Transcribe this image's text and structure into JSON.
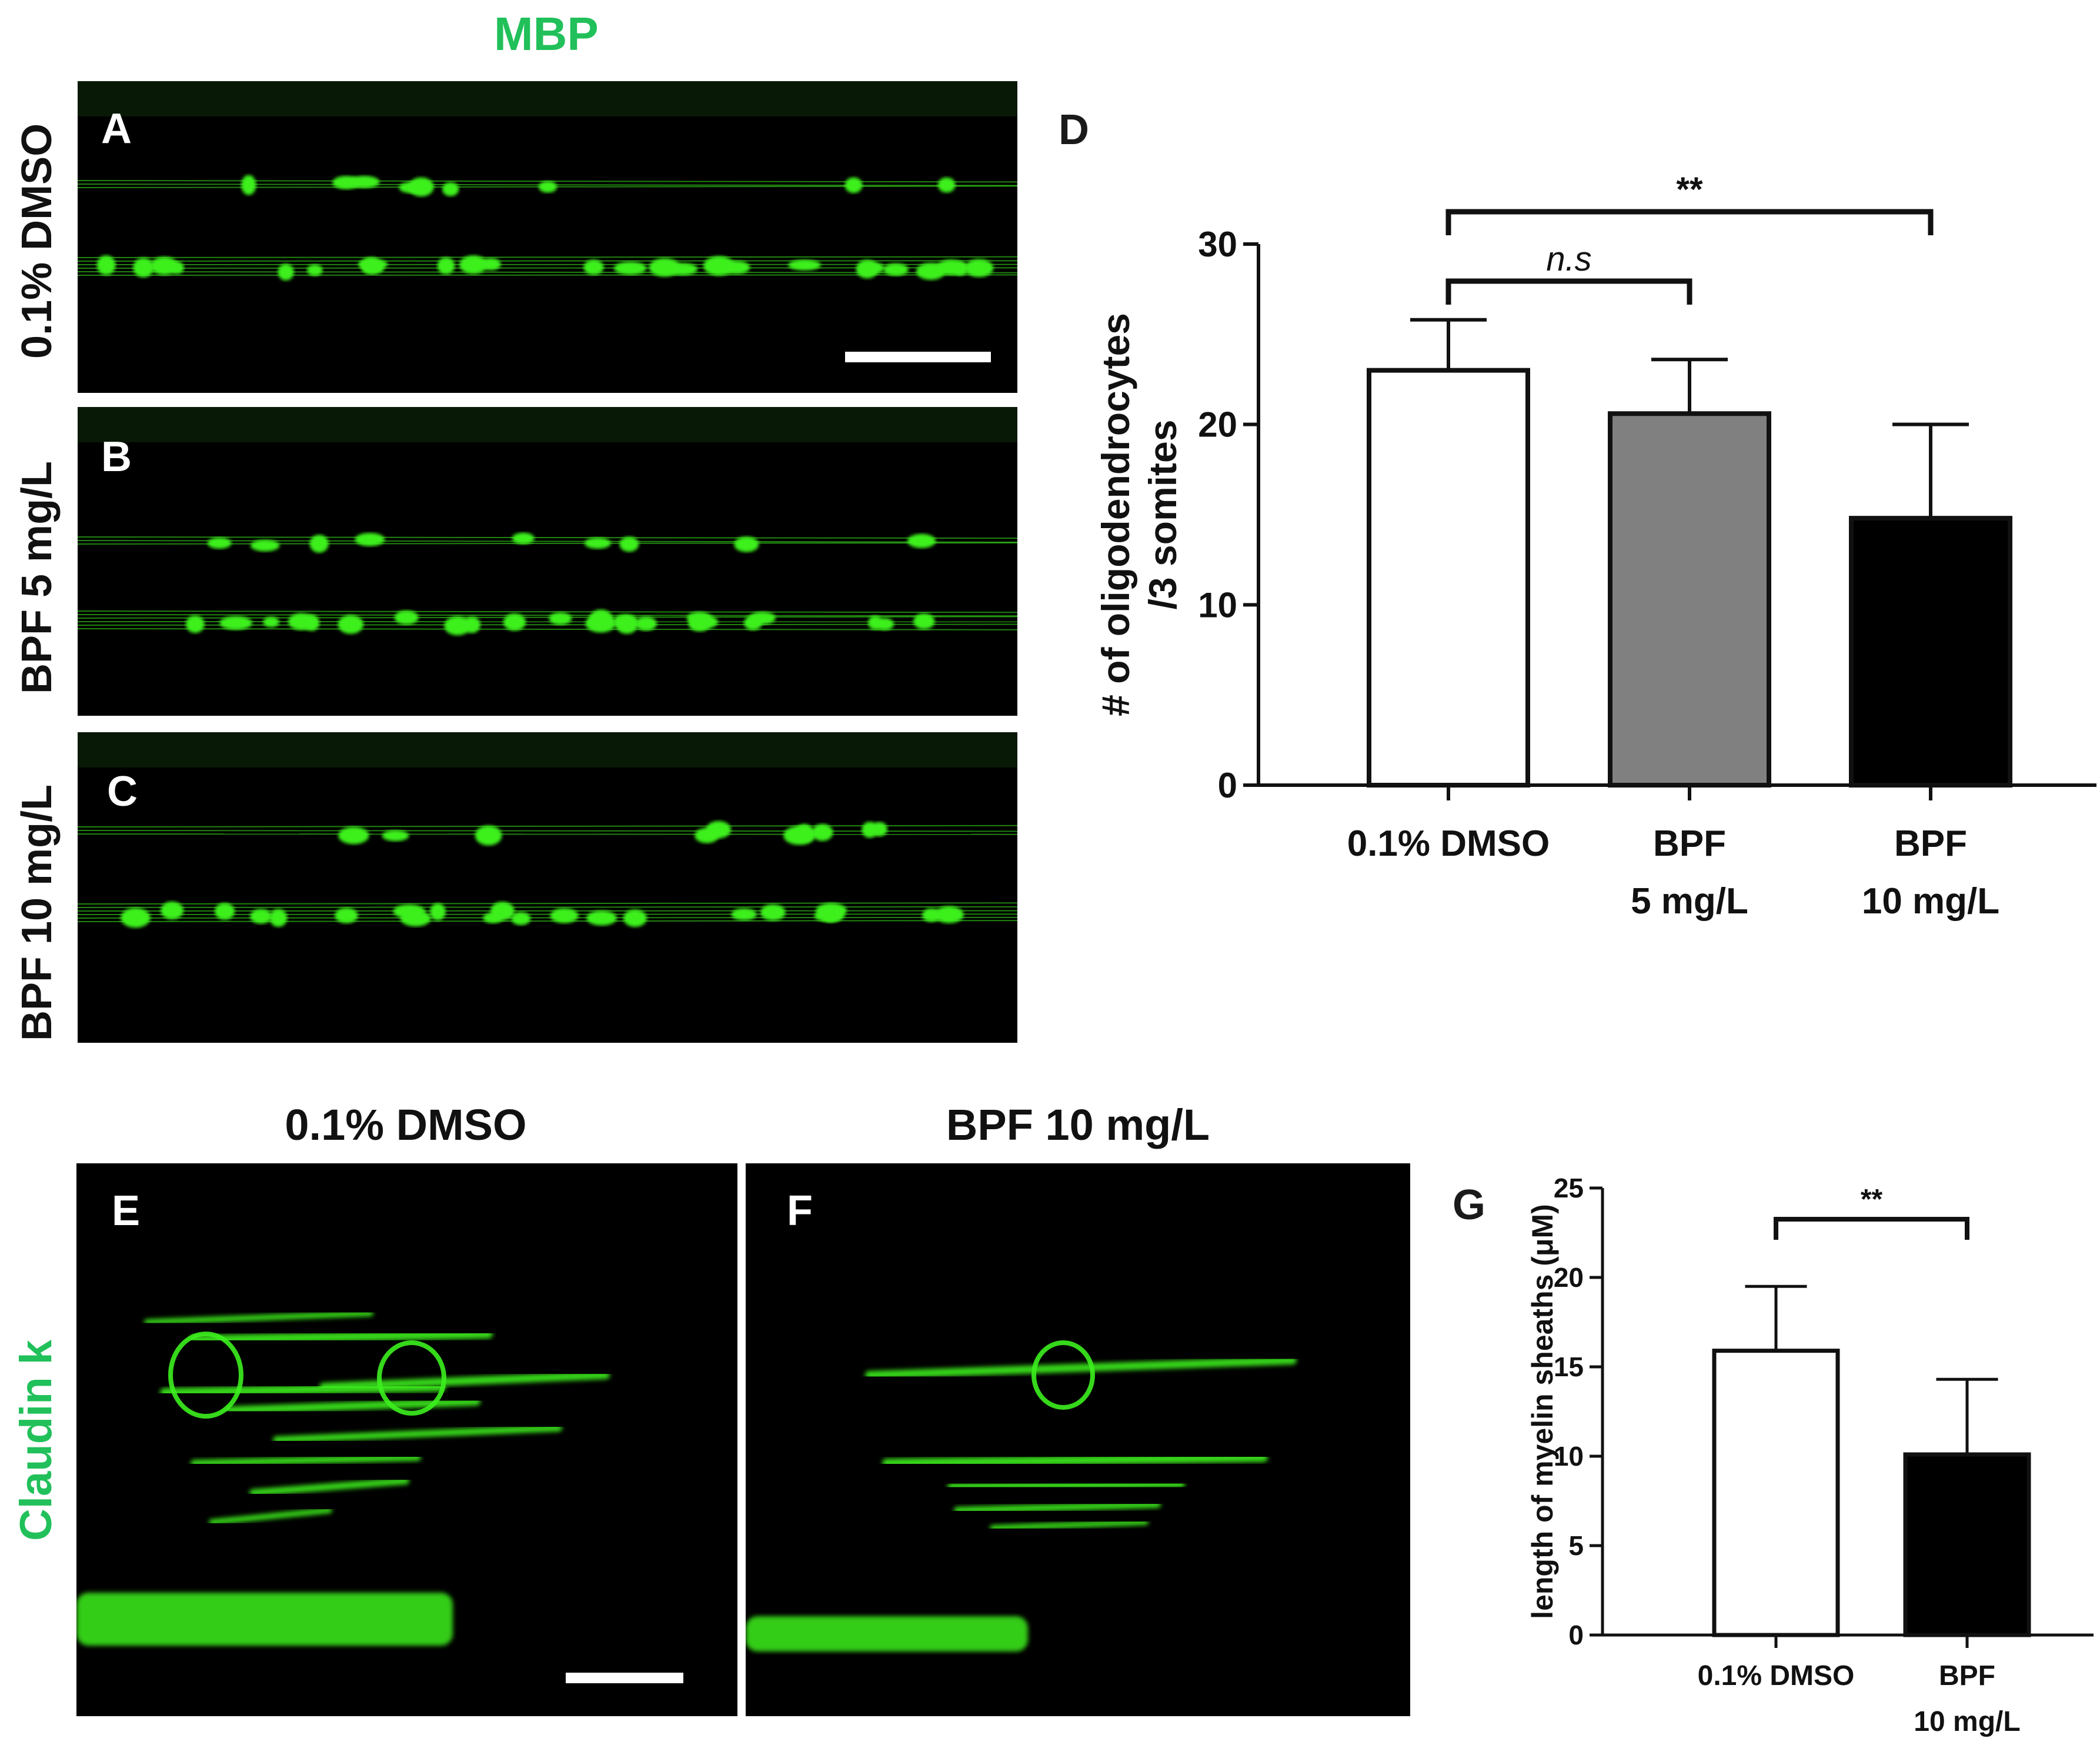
{
  "figure": {
    "mbp_title": "MBP",
    "claudin_title": "Claudin k",
    "colors": {
      "fluor_green": "#3cf01e",
      "label_green": "#21c05a",
      "bar_gray": "#808080",
      "bar_black": "#000000",
      "bar_white": "#ffffff"
    },
    "panels": {
      "A": {
        "letter": "A",
        "row_label": "0.1% DMSO"
      },
      "B": {
        "letter": "B",
        "row_label": "BPF 5 mg/L"
      },
      "C": {
        "letter": "C",
        "row_label": "BPF 10 mg/L"
      },
      "E": {
        "letter": "E",
        "column_title": "0.1% DMSO"
      },
      "F": {
        "letter": "F",
        "column_title": "BPF 10 mg/L"
      }
    }
  },
  "chart_data": [
    {
      "panel": "D",
      "letter": "D",
      "type": "bar",
      "ylabel_lines": [
        "# of oligodendrocytes",
        "/3 somites"
      ],
      "ylim": [
        0,
        30
      ],
      "yticks": [
        0,
        10,
        20,
        30
      ],
      "categories": [
        [
          "0.1% DMSO"
        ],
        [
          "BPF",
          "5 mg/L"
        ],
        [
          "BPF",
          "10 mg/L"
        ]
      ],
      "values": [
        23.0,
        20.6,
        14.8
      ],
      "errors": [
        2.8,
        3.0,
        5.2
      ],
      "fills": [
        "#ffffff",
        "#808080",
        "#000000"
      ],
      "brackets": [
        {
          "from": 0,
          "to": 1,
          "label": "n.s",
          "italic": true
        },
        {
          "from": 0,
          "to": 2,
          "label": "**",
          "italic": false
        }
      ],
      "grid": false
    },
    {
      "panel": "G",
      "letter": "G",
      "type": "bar",
      "ylabel_lines": [
        "length of myelin sheaths (μM)"
      ],
      "ylim": [
        0,
        25
      ],
      "yticks": [
        0,
        5,
        10,
        15,
        20,
        25
      ],
      "categories": [
        [
          "0.1% DMSO"
        ],
        [
          "BPF",
          "10 mg/L"
        ]
      ],
      "values": [
        15.9,
        10.1
      ],
      "errors": [
        3.6,
        4.2
      ],
      "fills": [
        "#ffffff",
        "#000000"
      ],
      "brackets": [
        {
          "from": 0,
          "to": 1,
          "label": "**",
          "italic": false
        }
      ],
      "grid": false
    }
  ]
}
